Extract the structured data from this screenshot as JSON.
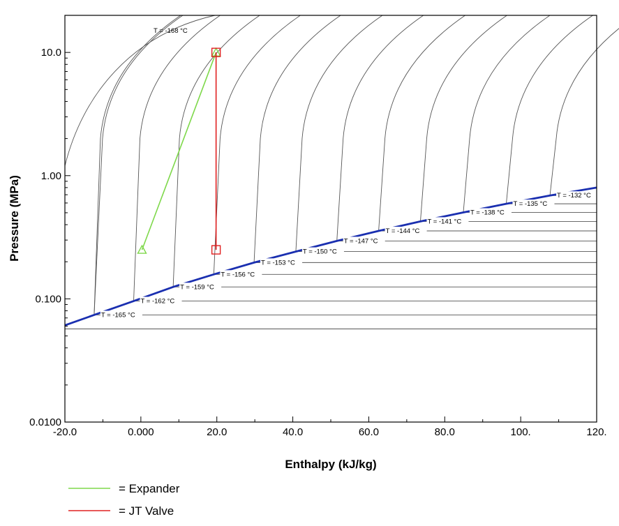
{
  "chart_data": {
    "type": "line",
    "title": "",
    "xlabel": "Enthalpy (kJ/kg)",
    "ylabel": "Pressure (MPa)",
    "xlim": [
      -20,
      120
    ],
    "ylim": [
      0.01,
      20
    ],
    "yscale": "log",
    "x_ticks": [
      -20,
      0,
      20,
      40,
      60,
      80,
      100,
      120
    ],
    "x_tick_labels": [
      "-20.0",
      "0.000",
      "20.0",
      "40.0",
      "60.0",
      "80.0",
      "100.",
      "120."
    ],
    "y_ticks": [
      0.01,
      0.1,
      1,
      10
    ],
    "y_tick_labels": [
      "0.0100",
      "0.100",
      "1.00",
      "10.0"
    ],
    "grid": false,
    "saturation_curve": {
      "color": "#1a2fb0",
      "points": [
        [
          -20,
          0.061
        ],
        [
          -12.3,
          0.074
        ],
        [
          -1.9,
          0.096
        ],
        [
          8.5,
          0.125
        ],
        [
          19.2,
          0.158
        ],
        [
          29.8,
          0.197
        ],
        [
          40.8,
          0.242
        ],
        [
          51.6,
          0.295
        ],
        [
          62.6,
          0.356
        ],
        [
          73.6,
          0.425
        ],
        [
          84.9,
          0.503
        ],
        [
          96.2,
          0.591
        ],
        [
          107.7,
          0.69
        ],
        [
          120,
          0.8
        ]
      ]
    },
    "isotherms": [
      {
        "label": "T = -165 °C",
        "p_sat": 0.074
      },
      {
        "label": "T = -162 °C",
        "p_sat": 0.096
      },
      {
        "label": "T = -159 °C",
        "p_sat": 0.125
      },
      {
        "label": "T = -156 °C",
        "p_sat": 0.158
      },
      {
        "label": "T = -153 °C",
        "p_sat": 0.197
      },
      {
        "label": "T = -150 °C",
        "p_sat": 0.242
      },
      {
        "label": "T = -147 °C",
        "p_sat": 0.295
      },
      {
        "label": "T = -144 °C",
        "p_sat": 0.356
      },
      {
        "label": "T = -141 °C",
        "p_sat": 0.425
      },
      {
        "label": "T = -138 °C",
        "p_sat": 0.503
      },
      {
        "label": "T = -135 °C",
        "p_sat": 0.591
      },
      {
        "label": "T = -132 °C",
        "p_sat": 0.69
      }
    ],
    "isotherm_top_label": "T = -168 °C",
    "series": [
      {
        "name": "Expander",
        "color": "#7ed84a",
        "marker": "triangle",
        "points": [
          [
            0.3,
            0.25
          ],
          [
            19.8,
            10
          ]
        ]
      },
      {
        "name": "JT Valve",
        "color": "#e02020",
        "marker": "square",
        "points": [
          [
            19.8,
            10
          ],
          [
            19.8,
            0.25
          ]
        ]
      }
    ],
    "legend": {
      "placement": "bottom-left",
      "entries": [
        {
          "name": "= Expander",
          "color": "#7ed84a"
        },
        {
          "name": "= JT Valve",
          "color": "#e02020"
        }
      ]
    }
  }
}
